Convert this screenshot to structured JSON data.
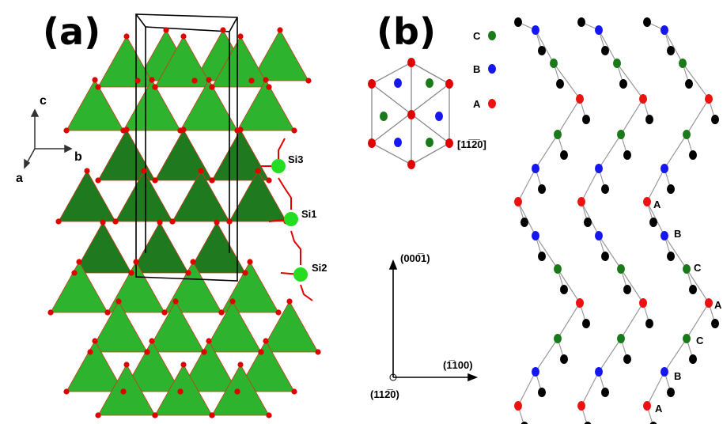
{
  "panel_a": {
    "label": "(a)",
    "axes": {
      "c": "c",
      "b": "b",
      "a": "a"
    },
    "sites": [
      "Si3",
      "Si1",
      "Si2"
    ]
  },
  "panel_b": {
    "label": "(b)",
    "legend": [
      {
        "letter": "C",
        "color": "#1a7a1a"
      },
      {
        "letter": "B",
        "color": "#1616ee"
      },
      {
        "letter": "A",
        "color": "#ee1111"
      }
    ],
    "hex_direction": "[11̅2̅0]",
    "dir_vertical": "(000̅1)",
    "dir_horizontal": "(͟1100)",
    "dir_horizontal_text": "(1̅100)",
    "dir_origin": "(112̅0)",
    "stacking_labels": [
      "A",
      "B",
      "C",
      "A",
      "C",
      "B",
      "A"
    ]
  },
  "colors": {
    "tetra_light": "#2db32d",
    "tetra_dark": "#1f7a1f",
    "oxygen": "#e00000",
    "silicon": "#22dd22",
    "atom_black": "#000000",
    "bond": "#999999"
  }
}
